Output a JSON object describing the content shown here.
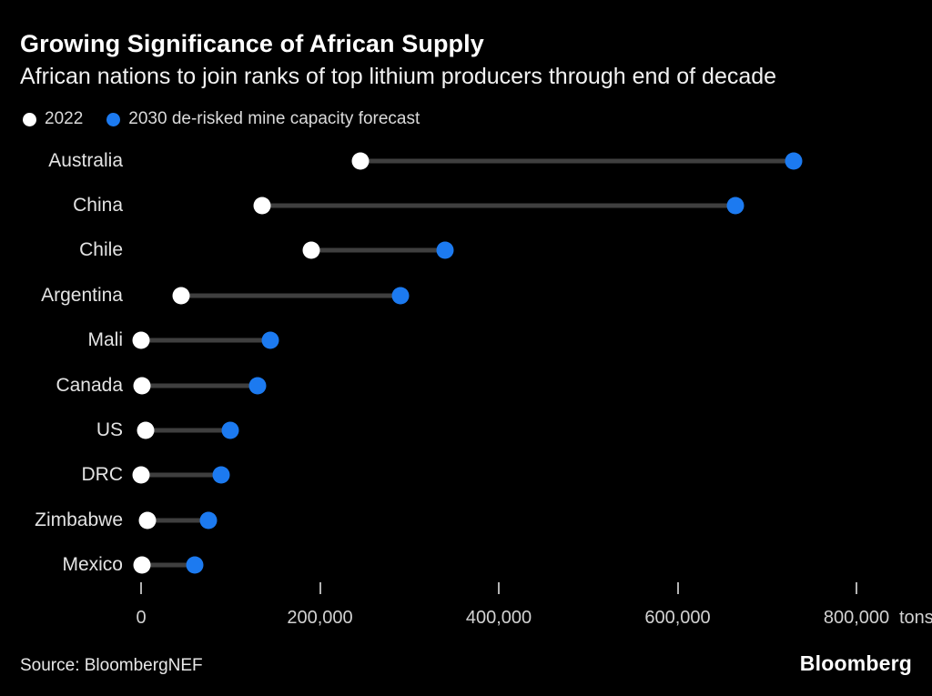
{
  "header": {
    "title": "Growing Significance of African Supply",
    "subtitle": "African nations to join ranks of top lithium producers through end of decade"
  },
  "legend": {
    "items": [
      {
        "label": "2022",
        "color": "#ffffff"
      },
      {
        "label": "2030 de-risked mine capacity forecast",
        "color": "#1c7af0"
      }
    ]
  },
  "chart_data": {
    "type": "dumbbell",
    "title": "Growing Significance of African Supply",
    "subtitle": "African nations to join ranks of top lithium producers through end of decade",
    "categories": [
      "Australia",
      "China",
      "Chile",
      "Argentina",
      "Mali",
      "Canada",
      "US",
      "DRC",
      "Zimbabwe",
      "Mexico"
    ],
    "series": [
      {
        "name": "2022",
        "color": "#ffffff",
        "values": [
          245000,
          135000,
          190000,
          45000,
          0,
          1000,
          5000,
          0,
          7000,
          1000
        ]
      },
      {
        "name": "2030 de-risked mine capacity forecast",
        "color": "#1c7af0",
        "values": [
          730000,
          665000,
          340000,
          290000,
          145000,
          130000,
          100000,
          90000,
          75000,
          60000
        ]
      }
    ],
    "xlim": [
      0,
      800000
    ],
    "x_ticks": [
      0,
      200000,
      400000,
      600000,
      800000
    ],
    "x_tick_labels": [
      "0",
      "200,000",
      "400,000",
      "600,000",
      "800,000"
    ],
    "x_unit": "tons",
    "ylabel": "",
    "xlabel": "",
    "grid": false,
    "legend_position": "top",
    "connector_color": "#3f3f3f",
    "background_color": "#000000"
  },
  "footer": {
    "source": "Source: BloombergNEF",
    "logo": "Bloomberg"
  }
}
